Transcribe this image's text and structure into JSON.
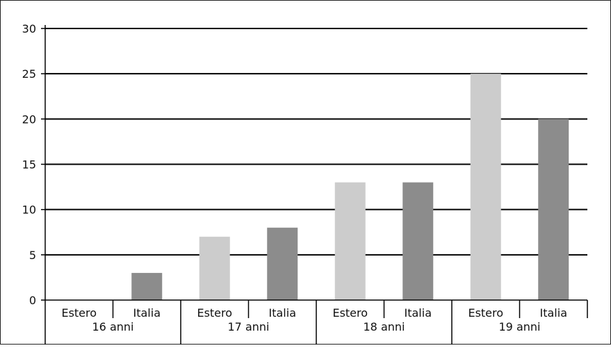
{
  "chart_data": {
    "type": "bar",
    "groups": [
      "16 anni",
      "17 anni",
      "18 anni",
      "19 anni"
    ],
    "sub_categories": [
      "Estero",
      "Italia"
    ],
    "series": [
      {
        "values": [
          0,
          7,
          13,
          25
        ],
        "color": "#cccccc"
      },
      {
        "values": [
          3,
          8,
          13,
          20
        ],
        "color": "#8c8c8c"
      }
    ],
    "y_ticks": [
      "0",
      "5",
      "10",
      "15",
      "20",
      "25",
      "30"
    ],
    "ylim": [
      0,
      30
    ],
    "grid": true,
    "title": "",
    "xlabel": "",
    "ylabel": ""
  }
}
